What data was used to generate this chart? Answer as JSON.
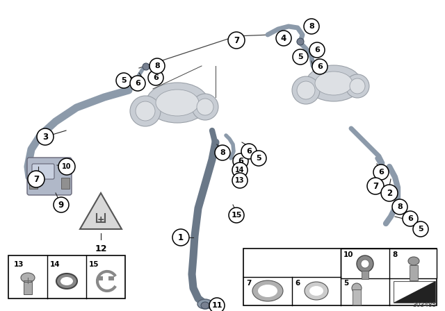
{
  "bg_color": "#ffffff",
  "diagram_id": "303485",
  "fig_width": 6.4,
  "fig_height": 4.48,
  "dpi": 100,
  "bubble_color": "#ffffff",
  "bubble_edgecolor": "#000000",
  "hose_gray": "#8c9aaa",
  "hose_dark": "#6a7888",
  "turbo_fill": "#c8cdd4",
  "turbo_edge": "#9aa0a8",
  "turbo_inner": "#dde0e4",
  "pump_fill": "#b8bec8",
  "warn_fill": "#d8d8d8",
  "warn_edge": "#555555",
  "line_color": "#222222"
}
